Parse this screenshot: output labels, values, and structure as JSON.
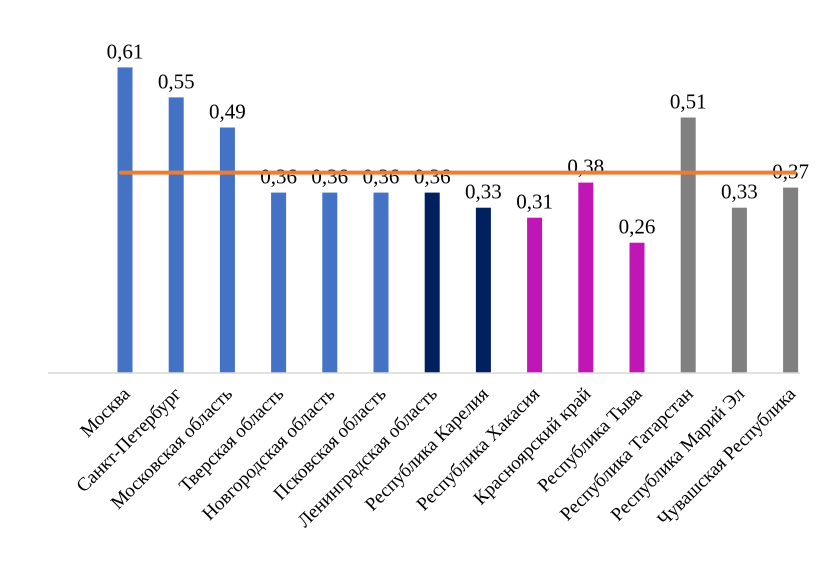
{
  "chart_data": {
    "type": "bar",
    "title": "",
    "xlabel": "",
    "ylabel": "",
    "ylim": [
      0,
      0.61
    ],
    "grid": false,
    "legend": "none",
    "categories": [
      "Москва",
      "Санкт-Петербург",
      "Московская область",
      "Тверская область",
      "Новгородская область",
      "Псковская область",
      "Ленинградская область",
      "Республика Карелия",
      "Республика Хакасия",
      "Красноярский край",
      "Республика Тыва",
      "Республика Татарстан",
      "Республика Марий Эл",
      "Чувашская Республика"
    ],
    "values": [
      0.61,
      0.55,
      0.49,
      0.36,
      0.36,
      0.36,
      0.36,
      0.33,
      0.31,
      0.38,
      0.26,
      0.51,
      0.33,
      0.37
    ],
    "value_labels": [
      "0,61",
      "0,55",
      "0,49",
      "0,36",
      "0,36",
      "0,36",
      "0,36",
      "0,33",
      "0,31",
      "0,38",
      "0,26",
      "0,51",
      "0,33",
      "0,37"
    ],
    "bar_colors": [
      "#4472C4",
      "#4472C4",
      "#4472C4",
      "#4472C4",
      "#4472C4",
      "#4472C4",
      "#002060",
      "#002060",
      "#C016B6",
      "#C016B6",
      "#C016B6",
      "#808080",
      "#808080",
      "#808080"
    ],
    "reference_line": {
      "value": 0.4,
      "color": "#ED7D31"
    },
    "axis_color": "#D9D9D9"
  }
}
